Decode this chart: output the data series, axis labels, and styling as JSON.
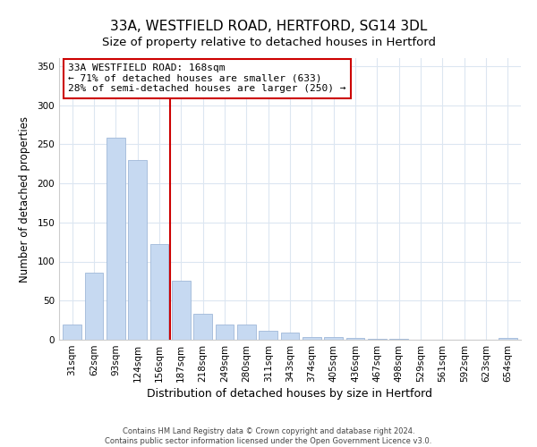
{
  "title": "33A, WESTFIELD ROAD, HERTFORD, SG14 3DL",
  "subtitle": "Size of property relative to detached houses in Hertford",
  "xlabel": "Distribution of detached houses by size in Hertford",
  "ylabel": "Number of detached properties",
  "bar_labels": [
    "31sqm",
    "62sqm",
    "93sqm",
    "124sqm",
    "156sqm",
    "187sqm",
    "218sqm",
    "249sqm",
    "280sqm",
    "311sqm",
    "343sqm",
    "374sqm",
    "405sqm",
    "436sqm",
    "467sqm",
    "498sqm",
    "529sqm",
    "561sqm",
    "592sqm",
    "623sqm",
    "654sqm"
  ],
  "bar_values": [
    19,
    86,
    258,
    230,
    122,
    76,
    33,
    20,
    20,
    11,
    9,
    4,
    4,
    2,
    1,
    1,
    0,
    0,
    0,
    0,
    2
  ],
  "bar_color": "#c6d9f1",
  "bar_edge_color": "#a0b8d8",
  "vline_x": 4.5,
  "vline_color": "#cc0000",
  "annotation_line1": "33A WESTFIELD ROAD: 168sqm",
  "annotation_line2": "← 71% of detached houses are smaller (633)",
  "annotation_line3": "28% of semi-detached houses are larger (250) →",
  "annotation_box_color": "#ffffff",
  "annotation_box_edge": "#cc0000",
  "ylim": [
    0,
    360
  ],
  "yticks": [
    0,
    50,
    100,
    150,
    200,
    250,
    300,
    350
  ],
  "footer_text": "Contains HM Land Registry data © Crown copyright and database right 2024.\nContains public sector information licensed under the Open Government Licence v3.0.",
  "title_fontsize": 11,
  "subtitle_fontsize": 9.5,
  "tick_fontsize": 7.5,
  "xlabel_fontsize": 9,
  "ylabel_fontsize": 8.5,
  "annotation_fontsize": 8,
  "bg_color": "#ffffff",
  "grid_color": "#dce6f1"
}
